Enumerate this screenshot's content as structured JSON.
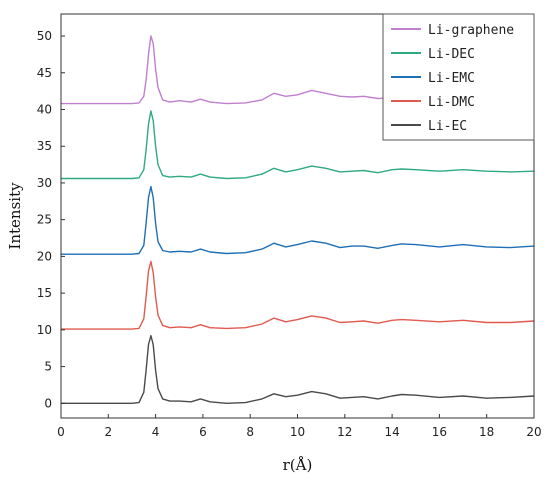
{
  "chart_data": {
    "type": "line",
    "title": "",
    "xlabel": "r(Å)",
    "ylabel": "Intensity",
    "xlim": [
      0,
      20
    ],
    "ylim": [
      -2,
      53
    ],
    "xticks": [
      0,
      2,
      4,
      6,
      8,
      10,
      12,
      14,
      16,
      18,
      20
    ],
    "yticks": [
      0,
      5,
      10,
      15,
      20,
      25,
      30,
      35,
      40,
      45,
      50
    ],
    "grid": false,
    "legend_position": "top-right",
    "series": [
      {
        "name": "Li-graphene",
        "color": "#c07fcf",
        "x": [
          0,
          1,
          2,
          3,
          3.3,
          3.5,
          3.6,
          3.7,
          3.8,
          3.9,
          4.0,
          4.1,
          4.3,
          4.6,
          5.0,
          5.5,
          5.9,
          6.3,
          7.0,
          7.8,
          8.5,
          9.0,
          9.5,
          10.0,
          10.6,
          11.2,
          11.8,
          12.3,
          12.8,
          13.4,
          14.0,
          14.4,
          15.0,
          16.0,
          17.0,
          18.0,
          19.0,
          20.0
        ],
        "y": [
          40.8,
          40.8,
          40.8,
          40.8,
          40.9,
          41.8,
          44.0,
          47.5,
          50.0,
          49.0,
          45.5,
          43.0,
          41.3,
          41.0,
          41.2,
          41.0,
          41.4,
          41.0,
          40.8,
          40.9,
          41.3,
          42.2,
          41.8,
          42.0,
          42.6,
          42.2,
          41.8,
          41.7,
          41.8,
          41.5,
          41.6,
          41.5,
          41.6,
          41.5,
          41.6,
          41.5,
          41.6,
          41.5
        ]
      },
      {
        "name": "Li-DEC",
        "color": "#2eaa7e",
        "x": [
          0,
          1,
          2,
          3,
          3.3,
          3.5,
          3.6,
          3.7,
          3.8,
          3.9,
          4.0,
          4.1,
          4.3,
          4.6,
          5.0,
          5.5,
          5.9,
          6.3,
          7.0,
          7.8,
          8.5,
          9.0,
          9.5,
          10.0,
          10.6,
          11.2,
          11.8,
          12.3,
          12.8,
          13.4,
          14.0,
          14.4,
          15.0,
          16.0,
          17.0,
          18.0,
          19.0,
          20.0
        ],
        "y": [
          30.6,
          30.6,
          30.6,
          30.6,
          30.7,
          31.8,
          34.5,
          38.0,
          39.8,
          38.5,
          35.0,
          32.5,
          31.0,
          30.8,
          30.9,
          30.8,
          31.2,
          30.8,
          30.6,
          30.7,
          31.2,
          32.0,
          31.5,
          31.8,
          32.3,
          32.0,
          31.5,
          31.6,
          31.7,
          31.4,
          31.8,
          31.9,
          31.8,
          31.6,
          31.8,
          31.6,
          31.5,
          31.6
        ]
      },
      {
        "name": "Li-EMC",
        "color": "#1f6fb5",
        "x": [
          0,
          1,
          2,
          3,
          3.3,
          3.5,
          3.6,
          3.7,
          3.8,
          3.9,
          4.0,
          4.1,
          4.3,
          4.6,
          5.0,
          5.5,
          5.9,
          6.3,
          7.0,
          7.8,
          8.5,
          9.0,
          9.5,
          10.0,
          10.6,
          11.2,
          11.8,
          12.3,
          12.8,
          13.4,
          14.0,
          14.4,
          15.0,
          16.0,
          17.0,
          18.0,
          19.0,
          20.0
        ],
        "y": [
          20.3,
          20.3,
          20.3,
          20.3,
          20.4,
          21.5,
          24.5,
          28.0,
          29.5,
          28.0,
          24.5,
          22.0,
          20.8,
          20.6,
          20.7,
          20.6,
          21.0,
          20.6,
          20.4,
          20.5,
          21.0,
          21.8,
          21.3,
          21.6,
          22.1,
          21.8,
          21.2,
          21.4,
          21.4,
          21.1,
          21.5,
          21.7,
          21.6,
          21.3,
          21.6,
          21.3,
          21.2,
          21.4
        ]
      },
      {
        "name": "Li-DMC",
        "color": "#e05a4e",
        "x": [
          0,
          1,
          2,
          3,
          3.3,
          3.5,
          3.6,
          3.7,
          3.8,
          3.9,
          4.0,
          4.1,
          4.3,
          4.6,
          5.0,
          5.5,
          5.9,
          6.3,
          7.0,
          7.8,
          8.5,
          9.0,
          9.5,
          10.0,
          10.6,
          11.2,
          11.8,
          12.3,
          12.8,
          13.4,
          14.0,
          14.4,
          15.0,
          16.0,
          17.0,
          18.0,
          19.0,
          20.0
        ],
        "y": [
          10.1,
          10.1,
          10.1,
          10.1,
          10.2,
          11.5,
          14.5,
          18.0,
          19.3,
          17.8,
          14.5,
          12.0,
          10.6,
          10.3,
          10.4,
          10.3,
          10.7,
          10.3,
          10.2,
          10.3,
          10.8,
          11.6,
          11.1,
          11.4,
          11.9,
          11.6,
          11.0,
          11.1,
          11.2,
          10.9,
          11.3,
          11.4,
          11.3,
          11.1,
          11.3,
          11.0,
          11.0,
          11.2
        ]
      },
      {
        "name": "Li-EC",
        "color": "#4a4a4a",
        "x": [
          0,
          1,
          2,
          3,
          3.3,
          3.5,
          3.6,
          3.7,
          3.8,
          3.9,
          4.0,
          4.1,
          4.3,
          4.6,
          5.0,
          5.5,
          5.9,
          6.3,
          7.0,
          7.8,
          8.5,
          9.0,
          9.5,
          10.0,
          10.6,
          11.2,
          11.8,
          12.3,
          12.8,
          13.4,
          14.0,
          14.4,
          15.0,
          16.0,
          17.0,
          18.0,
          19.0,
          20.0
        ],
        "y": [
          0.0,
          0.0,
          0.0,
          0.0,
          0.1,
          1.5,
          4.5,
          8.0,
          9.2,
          8.0,
          4.5,
          2.0,
          0.6,
          0.3,
          0.3,
          0.2,
          0.6,
          0.2,
          0.0,
          0.1,
          0.6,
          1.3,
          0.9,
          1.1,
          1.6,
          1.3,
          0.7,
          0.8,
          0.9,
          0.6,
          1.0,
          1.2,
          1.1,
          0.8,
          1.0,
          0.7,
          0.8,
          1.0
        ]
      }
    ]
  }
}
